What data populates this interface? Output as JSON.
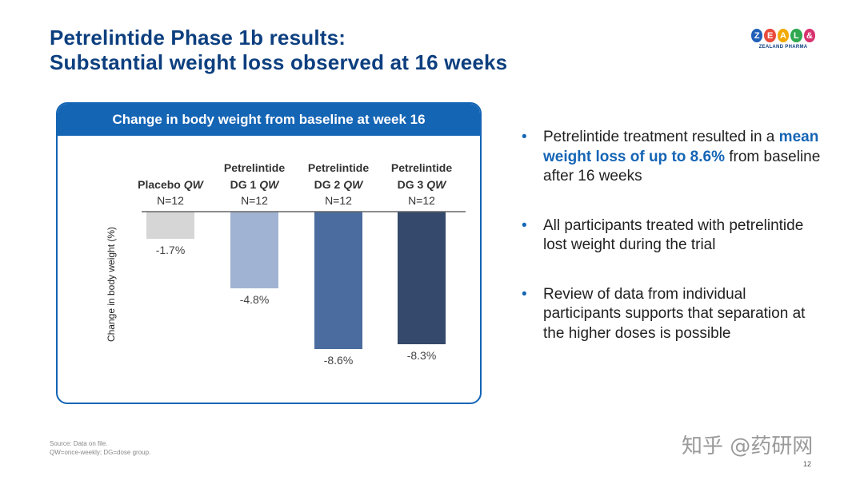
{
  "title": {
    "line1": "Petrelintide Phase 1b results:",
    "line2": "Substantial weight loss observed at 16 weeks"
  },
  "logo": {
    "letters": [
      "Z",
      "E",
      "A",
      "L",
      "&"
    ],
    "colors": [
      "#1f5fb8",
      "#e94b3c",
      "#f2a900",
      "#2fa84f",
      "#d8336f"
    ],
    "subtitle": "ZEALAND PHARMA"
  },
  "chart_header": "Change in body weight from baseline at week 16",
  "chart_data": {
    "type": "bar",
    "title": "Change in body weight from baseline at week 16",
    "ylabel": "Change in body weight (%)",
    "xlabel": "",
    "categories": [
      {
        "line1": "",
        "line2_name": "Placebo",
        "line2_freq": "QW",
        "n": "N=12"
      },
      {
        "line1": "Petrelintide",
        "line2_name": "DG 1",
        "line2_freq": "QW",
        "n": "N=12"
      },
      {
        "line1": "Petrelintide",
        "line2_name": "DG 2",
        "line2_freq": "QW",
        "n": "N=12"
      },
      {
        "line1": "Petrelintide",
        "line2_name": "DG 3",
        "line2_freq": "QW",
        "n": "N=12"
      }
    ],
    "values": [
      -1.7,
      -4.8,
      -8.6,
      -8.3
    ],
    "data_labels": [
      "-1.7%",
      "-4.8%",
      "-8.6%",
      "-8.3%"
    ],
    "colors": [
      "#d6d6d6",
      "#a1b3d2",
      "#4a6c9e",
      "#34496b"
    ],
    "ylim": [
      -9,
      0
    ],
    "grid": false
  },
  "bullets": [
    {
      "before": "Petrelintide treatment resulted in a ",
      "highlight": "mean weight loss of up to 8.6%",
      "after": " from baseline after 16 weeks"
    },
    {
      "before": "All participants treated with petrelintide lost weight during the trial",
      "highlight": "",
      "after": ""
    },
    {
      "before": "Review of data from individual participants supports that separation at the higher doses is possible",
      "highlight": "",
      "after": ""
    }
  ],
  "bullet_symbol": "•",
  "footnote": {
    "line1": "Source: Data on file.",
    "line2": "QW=once-weekly; DG=dose group."
  },
  "watermark": "知乎 @药研网",
  "page_number": "12"
}
